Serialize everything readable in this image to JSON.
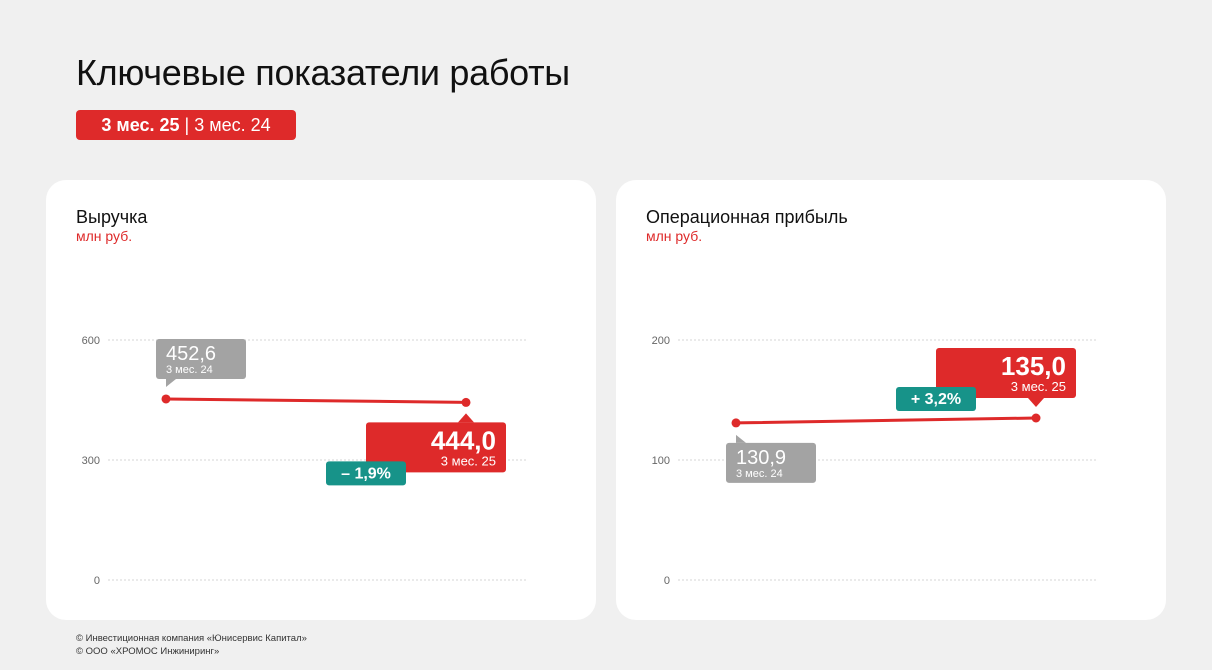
{
  "header": {
    "title": "Ключевые показатели работы",
    "period_current": "3 мес. 25",
    "period_separator": "|",
    "period_previous": "3 мес. 24"
  },
  "colors": {
    "accent_red": "#de2a2a",
    "change_teal": "#179389",
    "previous_gray": "#a3a3a3",
    "grid": "#d6d6d6",
    "axis_text": "#666666"
  },
  "chart_data": [
    {
      "type": "line",
      "title": "Выручка",
      "subtitle": "млн руб.",
      "ylim": [
        0,
        600
      ],
      "yticks": [
        0,
        300,
        600
      ],
      "grid": true,
      "points": [
        {
          "value": 452.6,
          "value_label": "452,6",
          "period": "3 мес. 24",
          "style": "previous"
        },
        {
          "value": 444.0,
          "value_label": "444,0",
          "period": "3 мес. 25",
          "style": "current"
        }
      ],
      "change_label": "– 1,9%"
    },
    {
      "type": "line",
      "title": "Операционная прибыль",
      "subtitle": "млн руб.",
      "ylim": [
        0,
        200
      ],
      "yticks": [
        0,
        100,
        200
      ],
      "grid": true,
      "points": [
        {
          "value": 130.9,
          "value_label": "130,9",
          "period": "3 мес. 24",
          "style": "previous"
        },
        {
          "value": 135.0,
          "value_label": "135,0",
          "period": "3 мес. 25",
          "style": "current"
        }
      ],
      "change_label": "+ 3,2%"
    }
  ],
  "footer": {
    "line1": "© Инвестиционная компания «Юнисервис Капитал»",
    "line2": "© ООО «ХРОМОС Инжиниринг»"
  }
}
